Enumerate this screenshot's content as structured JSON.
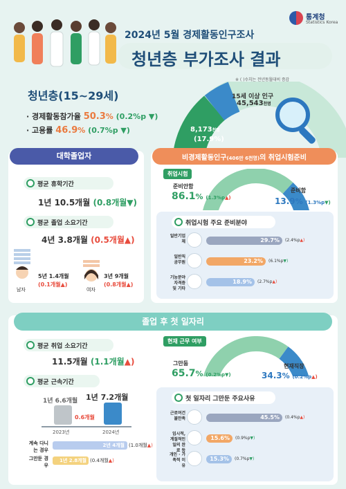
{
  "header": {
    "logo_kr": "통계청",
    "logo_en": "Statistics Korea",
    "subtitle": "2024년 5월 경제활동인구조사",
    "title": "청년층 부가조사 결과",
    "note": "※ ( )수치는 전년동월대비 증감"
  },
  "youth": {
    "heading": "청년층(15~29세)",
    "rate1_label": "· 경제활동참가율",
    "rate1_value": "50.3",
    "rate1_unit": "%",
    "rate1_delta": "(0.2%p",
    "rate2_label": "· 고용률",
    "rate2_value": "46.9",
    "rate2_unit": "%",
    "rate2_delta": "(0.7%p",
    "pop15_label": "15세 이상 인구",
    "pop15_value": "45,543",
    "pop15_unit": "천명",
    "youth_pop": "8,173",
    "youth_pop_unit": "천명",
    "youth_share": "(17.9%)"
  },
  "grad": {
    "title": "대학졸업자",
    "leave_label": "평균 휴학기간",
    "leave_value": "1년 10.5개월",
    "leave_delta": "(0.8개월",
    "duration_label": "평균 졸업 소요기간",
    "duration_value": "4년 3.8개월",
    "duration_delta": "(0.5개월",
    "male_value": "5년 1.4개월",
    "male_delta": "(0.1개월",
    "male_label": "남자",
    "female_value": "3년 9개월",
    "female_delta": "(0.8개월",
    "female_label": "여자"
  },
  "exam": {
    "title_main": "비경제활동인구",
    "title_paren": "(406만 6천명)",
    "title_tail": "의 취업시험준비",
    "tag": "취업시험",
    "prep_label": "준비안함",
    "prep_no_value": "86.1",
    "prep_no_delta": "(1.3%p",
    "prep_yes_label": "준비함",
    "prep_yes_value": "13.9",
    "prep_yes_delta": "(1.3%p",
    "field_title": "취업시험 주요 준비분야",
    "fields": [
      {
        "label": "일반기업체",
        "value": "29.7",
        "pct": 29.7,
        "delta": "(2.4%p"
      },
      {
        "label": "일반직 공무원",
        "value": "23.2",
        "pct": 23.2,
        "delta": "(6.1%p"
      },
      {
        "label": "기능분야 자격증 및 기타",
        "value": "18.9",
        "pct": 18.9,
        "delta": "(2.7%p"
      }
    ]
  },
  "firstjob": {
    "title": "졸업 후 첫 일자리",
    "time_label": "평균 취업 소요기간",
    "time_value": "11.5개월",
    "time_delta": "(1.1개월",
    "tenure_label": "평균 근속기간",
    "tenure_2023": "1년 6.6개월",
    "tenure_2024": "1년 7.2개월",
    "tenure_diff": "0.6개월",
    "year_2023": "2023년",
    "year_2024": "2024년",
    "stay_label": "계속 다니는 경우",
    "stay_value": "2년 4개월",
    "stay_delta": "(1.0개월",
    "quit_label": "그만둔 경우",
    "quit_value": "1년 2.8개월",
    "quit_delta": "(0.4개월",
    "status_tag": "현재 근무 여부",
    "quit_share_label": "그만둠",
    "quit_share_value": "65.7",
    "quit_share_delta": "(0.2%p",
    "current_label": "현재직장",
    "current_value": "34.3",
    "current_delta": "(0.2%p",
    "reasons_title": "첫 일자리 그만둔 주요사유",
    "reasons": [
      {
        "label": "근로여건 불만족",
        "value": "45.5",
        "pct": 45.5,
        "delta": "(0.4%p"
      },
      {
        "label": "임시적, 계절적인 일의 완료 등",
        "value": "15.6",
        "pct": 15.6,
        "delta": "(0.9%p"
      },
      {
        "label": "개인 · 가족적 이유",
        "value": "15.3",
        "pct": 15.3,
        "delta": "(0.7%p"
      }
    ]
  }
}
